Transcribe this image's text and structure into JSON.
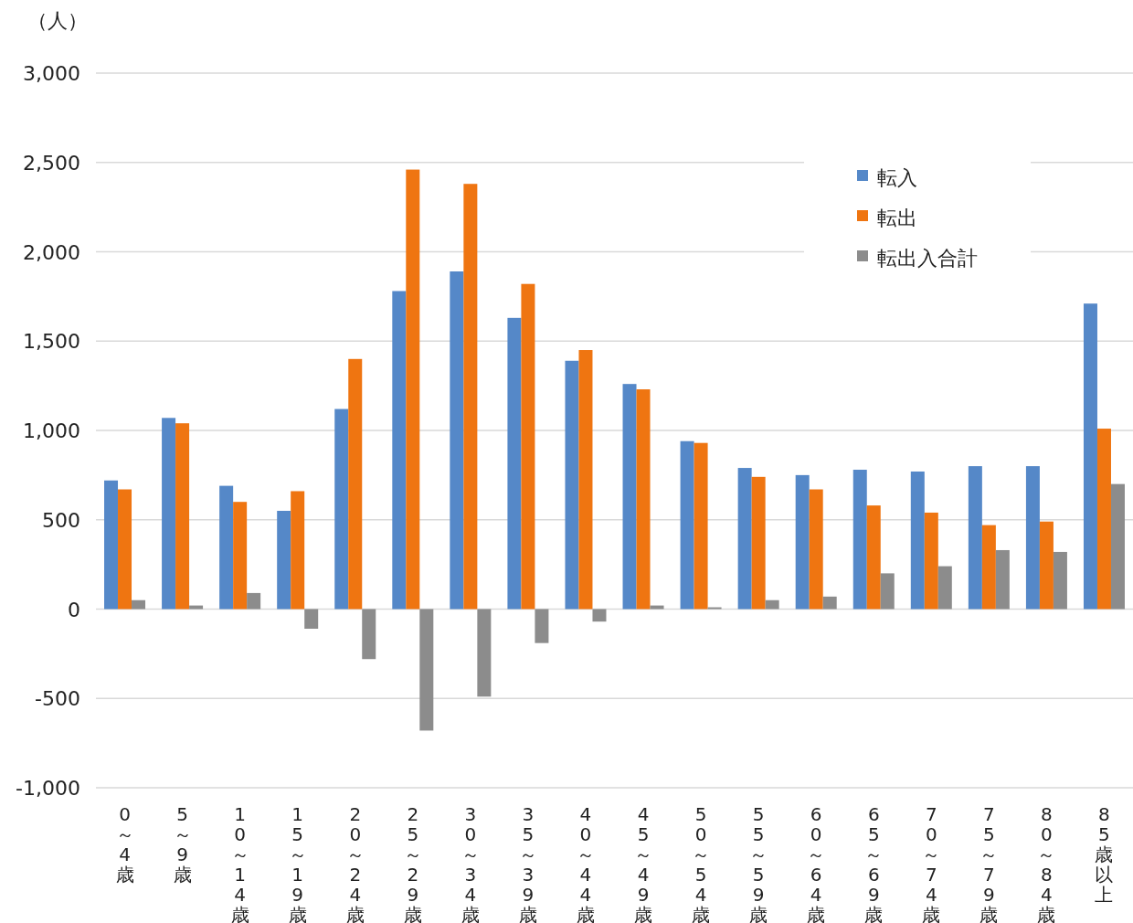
{
  "chart_data": {
    "type": "bar",
    "ylabel": "（人）",
    "categories": [
      "0～4歳",
      "5～9歳",
      "10～14歳",
      "15～19歳",
      "20～24歳",
      "25～29歳",
      "30～34歳",
      "35～39歳",
      "40～44歳",
      "45～49歳",
      "50～54歳",
      "55～59歳",
      "60～64歳",
      "65～69歳",
      "70～74歳",
      "75～79歳",
      "80～84歳",
      "85歳以上"
    ],
    "series": [
      {
        "name": "転入",
        "color": "#5588c8",
        "values": [
          720,
          1070,
          690,
          550,
          1120,
          1780,
          1890,
          1630,
          1390,
          1260,
          940,
          790,
          750,
          780,
          770,
          800,
          800,
          1710
        ]
      },
      {
        "name": "転出",
        "color": "#ef7511",
        "values": [
          670,
          1040,
          600,
          660,
          1400,
          2460,
          2380,
          1820,
          1450,
          1230,
          930,
          740,
          670,
          580,
          540,
          470,
          490,
          1010
        ]
      },
      {
        "name": "転出入合計",
        "color": "#8c8c8c",
        "values": [
          50,
          20,
          90,
          -110,
          -280,
          -680,
          -490,
          -190,
          -70,
          20,
          10,
          50,
          70,
          200,
          240,
          330,
          320,
          700
        ]
      }
    ],
    "ylim": [
      -1000,
      3000
    ],
    "yticks": [
      {
        "value": -1000,
        "label": "-1,000"
      },
      -500,
      0,
      500,
      {
        "value": 1000,
        "label": "1,000"
      },
      {
        "value": 1500,
        "label": "1,500"
      },
      {
        "value": 2000,
        "label": "2,000"
      },
      {
        "value": 2500,
        "label": "2,500"
      },
      {
        "value": 3000,
        "label": "3,000"
      }
    ],
    "grid": "y",
    "legend": "top right"
  }
}
